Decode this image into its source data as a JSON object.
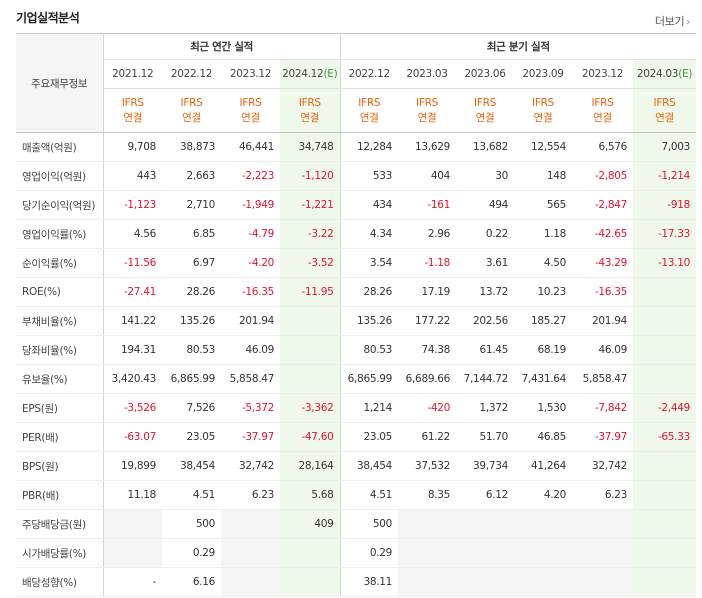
{
  "header": {
    "title": "기업실적분석",
    "more_label": "더보기"
  },
  "table": {
    "corner_label": "주요재무정보",
    "annual_group": "최근 연간 실적",
    "quarter_group": "최근 분기 실적",
    "annual_periods": [
      "2021.12",
      "2022.12",
      "2023.12",
      "2024.12"
    ],
    "quarter_periods": [
      "2022.12",
      "2023.03",
      "2023.06",
      "2023.09",
      "2023.12",
      "2024.03"
    ],
    "estimate_mark": "(E)",
    "ifrs_line1": "IFRS",
    "ifrs_line2": "연결",
    "rows": [
      {
        "label": "매출액(억원)",
        "values": [
          "9,708",
          "38,873",
          "46,441",
          "34,748",
          "12,284",
          "13,629",
          "13,682",
          "12,554",
          "6,576",
          "7,003"
        ]
      },
      {
        "label": "영업이익(억원)",
        "values": [
          "443",
          "2,663",
          "-2,223",
          "-1,120",
          "533",
          "404",
          "30",
          "148",
          "-2,805",
          "-1,214"
        ]
      },
      {
        "label": "당기순이익(억원)",
        "values": [
          "-1,123",
          "2,710",
          "-1,949",
          "-1,221",
          "434",
          "-161",
          "494",
          "565",
          "-2,847",
          "-918"
        ]
      },
      {
        "label": "영업이익률(%)",
        "values": [
          "4.56",
          "6.85",
          "-4.79",
          "-3.22",
          "4.34",
          "2.96",
          "0.22",
          "1.18",
          "-42.65",
          "-17.33"
        ]
      },
      {
        "label": "순이익률(%)",
        "values": [
          "-11.56",
          "6.97",
          "-4.20",
          "-3.52",
          "3.54",
          "-1.18",
          "3.61",
          "4.50",
          "-43.29",
          "-13.10"
        ]
      },
      {
        "label": "ROE(%)",
        "values": [
          "-27.41",
          "28.26",
          "-16.35",
          "-11.95",
          "28.26",
          "17.19",
          "13.72",
          "10.23",
          "-16.35",
          ""
        ]
      },
      {
        "label": "부채비율(%)",
        "values": [
          "141.22",
          "135.26",
          "201.94",
          "",
          "135.26",
          "177.22",
          "202.56",
          "185.27",
          "201.94",
          ""
        ]
      },
      {
        "label": "당좌비율(%)",
        "values": [
          "194.31",
          "80.53",
          "46.09",
          "",
          "80.53",
          "74.38",
          "61.45",
          "68.19",
          "46.09",
          ""
        ]
      },
      {
        "label": "유보율(%)",
        "values": [
          "3,420.43",
          "6,865.99",
          "5,858.47",
          "",
          "6,865.99",
          "6,689.66",
          "7,144.72",
          "7,431.64",
          "5,858.47",
          ""
        ]
      },
      {
        "label": "EPS(원)",
        "values": [
          "-3,526",
          "7,526",
          "-5,372",
          "-3,362",
          "1,214",
          "-420",
          "1,372",
          "1,530",
          "-7,842",
          "-2,449"
        ]
      },
      {
        "label": "PER(배)",
        "values": [
          "-63.07",
          "23.05",
          "-37.97",
          "-47.60",
          "23.05",
          "61.22",
          "51.70",
          "46.85",
          "-37.97",
          "-65.33"
        ]
      },
      {
        "label": "BPS(원)",
        "values": [
          "19,899",
          "38,454",
          "32,742",
          "28,164",
          "38,454",
          "37,532",
          "39,734",
          "41,264",
          "32,742",
          ""
        ]
      },
      {
        "label": "PBR(배)",
        "values": [
          "11.18",
          "4.51",
          "6.23",
          "5.68",
          "4.51",
          "8.35",
          "6.12",
          "4.20",
          "6.23",
          ""
        ]
      },
      {
        "label": "주당배당금(원)",
        "values": [
          "",
          "500",
          "",
          "409",
          "500",
          "",
          "",
          "",
          "",
          ""
        ]
      },
      {
        "label": "시가배당률(%)",
        "values": [
          "",
          "0.29",
          "",
          "",
          "0.29",
          "",
          "",
          "",
          "",
          ""
        ]
      },
      {
        "label": "배당성향(%)",
        "values": [
          "-",
          "6.16",
          "",
          "",
          "38.11",
          "",
          "",
          "",
          "",
          ""
        ]
      }
    ]
  },
  "colors": {
    "negative": "#e2142d",
    "ifrs": "#e8630a",
    "estimate_bg": "#f0f8ec",
    "estimate_mark": "#3a9a3a"
  }
}
